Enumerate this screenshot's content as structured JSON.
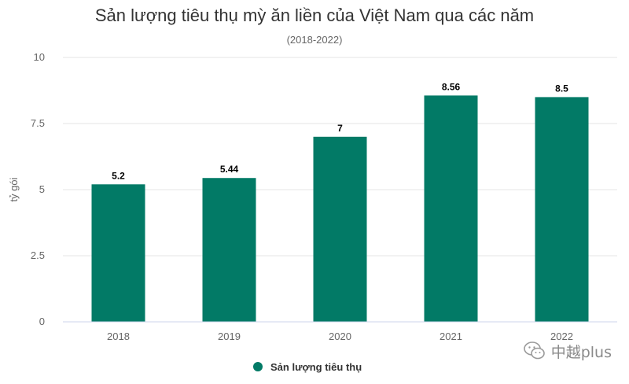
{
  "chart_data": {
    "type": "bar",
    "title": "Sản lượng tiêu thụ mỳ ăn liền của Việt Nam qua các năm",
    "subtitle": "(2018-2022)",
    "ylabel": "tỷ gói",
    "xlabel": "",
    "categories": [
      "2018",
      "2019",
      "2020",
      "2021",
      "2022"
    ],
    "series": [
      {
        "name": "Sản lượng tiêu thụ",
        "values": [
          5.2,
          5.44,
          7,
          8.56,
          8.5
        ]
      }
    ],
    "data_labels": [
      "5.2",
      "5.44",
      "7",
      "8.56",
      "8.5"
    ],
    "ylim": [
      0,
      10
    ],
    "yticks": [
      "0",
      "2.5",
      "5",
      "7.5",
      "10"
    ],
    "ytick_values": [
      0,
      2.5,
      5,
      7.5,
      10
    ],
    "grid": true,
    "legend_position": "bottom-center",
    "colors": {
      "bar": "#027a66",
      "grid": "#e6e6e6",
      "axis": "#ccd6eb",
      "text": "#333333",
      "tick": "#666666"
    }
  },
  "watermark": {
    "text": "中越plus",
    "icon": "wechat-icon"
  }
}
